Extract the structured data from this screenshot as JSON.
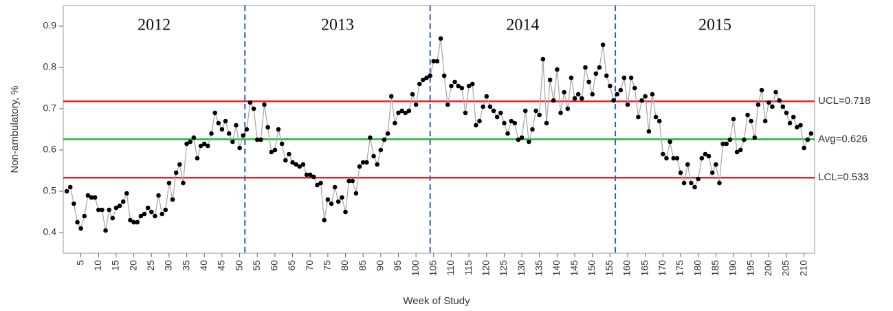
{
  "chart_data": {
    "type": "control",
    "x_label": "Week of Study",
    "y_label": "Non-ambulatory, %",
    "xlim": [
      0,
      213
    ],
    "ylim": [
      0.35,
      0.95
    ],
    "xticks": [
      5,
      10,
      15,
      20,
      25,
      30,
      35,
      40,
      45,
      50,
      55,
      60,
      65,
      70,
      75,
      80,
      85,
      90,
      95,
      100,
      105,
      110,
      115,
      120,
      125,
      130,
      135,
      140,
      145,
      150,
      155,
      160,
      165,
      170,
      175,
      180,
      185,
      190,
      195,
      200,
      205,
      210
    ],
    "yticks": [
      0.4,
      0.5,
      0.6,
      0.7,
      0.8,
      0.9
    ],
    "year_labels": [
      "2012",
      "2013",
      "2014",
      "2015"
    ],
    "year_dividers": [
      51.5,
      104,
      156.5
    ],
    "control_lines": [
      {
        "label": "UCL=0.718",
        "value": 0.718,
        "color": "#e8222c"
      },
      {
        "label": "Avg=0.626",
        "value": 0.626,
        "color": "#22b33a"
      },
      {
        "label": "LCL=0.533",
        "value": 0.533,
        "color": "#e8222c"
      }
    ],
    "x": [
      1,
      2,
      3,
      4,
      5,
      6,
      7,
      8,
      9,
      10,
      11,
      12,
      13,
      14,
      15,
      16,
      17,
      18,
      19,
      20,
      21,
      22,
      23,
      24,
      25,
      26,
      27,
      28,
      29,
      30,
      31,
      32,
      33,
      34,
      35,
      36,
      37,
      38,
      39,
      40,
      41,
      42,
      43,
      44,
      45,
      46,
      47,
      48,
      49,
      50,
      51,
      52,
      53,
      54,
      55,
      56,
      57,
      58,
      59,
      60,
      61,
      62,
      63,
      64,
      65,
      66,
      67,
      68,
      69,
      70,
      71,
      72,
      73,
      74,
      75,
      76,
      77,
      78,
      79,
      80,
      81,
      82,
      83,
      84,
      85,
      86,
      87,
      88,
      89,
      90,
      91,
      92,
      93,
      94,
      95,
      96,
      97,
      98,
      99,
      100,
      101,
      102,
      103,
      104,
      105,
      106,
      107,
      108,
      109,
      110,
      111,
      112,
      113,
      114,
      115,
      116,
      117,
      118,
      119,
      120,
      121,
      122,
      123,
      124,
      125,
      126,
      127,
      128,
      129,
      130,
      131,
      132,
      133,
      134,
      135,
      136,
      137,
      138,
      139,
      140,
      141,
      142,
      143,
      144,
      145,
      146,
      147,
      148,
      149,
      150,
      151,
      152,
      153,
      154,
      155,
      156,
      157,
      158,
      159,
      160,
      161,
      162,
      163,
      164,
      165,
      166,
      167,
      168,
      169,
      170,
      171,
      172,
      173,
      174,
      175,
      176,
      177,
      178,
      179,
      180,
      181,
      182,
      183,
      184,
      185,
      186,
      187,
      188,
      189,
      190,
      191,
      192,
      193,
      194,
      195,
      196,
      197,
      198,
      199,
      200,
      201,
      202,
      203,
      204,
      205,
      206,
      207,
      208,
      209,
      210,
      211,
      212
    ],
    "series": [
      {
        "color": "#000000",
        "line_color": "#aaaaaa",
        "values": [
          0.5,
          0.51,
          0.47,
          0.425,
          0.41,
          0.44,
          0.49,
          0.485,
          0.485,
          0.455,
          0.455,
          0.405,
          0.455,
          0.435,
          0.46,
          0.465,
          0.475,
          0.495,
          0.43,
          0.425,
          0.425,
          0.44,
          0.445,
          0.46,
          0.45,
          0.44,
          0.49,
          0.445,
          0.455,
          0.52,
          0.48,
          0.545,
          0.565,
          0.52,
          0.615,
          0.62,
          0.63,
          0.58,
          0.61,
          0.615,
          0.61,
          0.64,
          0.69,
          0.665,
          0.65,
          0.67,
          0.64,
          0.62,
          0.66,
          0.605,
          0.635,
          0.65,
          0.715,
          0.7,
          0.625,
          0.625,
          0.71,
          0.655,
          0.595,
          0.6,
          0.65,
          0.615,
          0.575,
          0.59,
          0.57,
          0.565,
          0.56,
          0.565,
          0.54,
          0.54,
          0.535,
          0.515,
          0.52,
          0.43,
          0.48,
          0.47,
          0.51,
          0.475,
          0.485,
          0.45,
          0.525,
          0.525,
          0.495,
          0.56,
          0.57,
          0.57,
          0.63,
          0.585,
          0.565,
          0.6,
          0.625,
          0.64,
          0.73,
          0.665,
          0.69,
          0.695,
          0.69,
          0.695,
          0.735,
          0.71,
          0.76,
          0.77,
          0.775,
          0.78,
          0.815,
          0.815,
          0.87,
          0.78,
          0.71,
          0.755,
          0.765,
          0.755,
          0.75,
          0.69,
          0.755,
          0.76,
          0.66,
          0.67,
          0.705,
          0.73,
          0.705,
          0.695,
          0.68,
          0.69,
          0.665,
          0.64,
          0.67,
          0.665,
          0.625,
          0.63,
          0.695,
          0.62,
          0.65,
          0.695,
          0.685,
          0.82,
          0.665,
          0.77,
          0.72,
          0.795,
          0.69,
          0.74,
          0.7,
          0.775,
          0.725,
          0.735,
          0.725,
          0.8,
          0.765,
          0.735,
          0.785,
          0.8,
          0.855,
          0.78,
          0.755,
          0.72,
          0.735,
          0.745,
          0.775,
          0.71,
          0.775,
          0.75,
          0.68,
          0.72,
          0.73,
          0.645,
          0.735,
          0.68,
          0.67,
          0.59,
          0.58,
          0.62,
          0.58,
          0.58,
          0.545,
          0.52,
          0.565,
          0.52,
          0.51,
          0.53,
          0.58,
          0.59,
          0.585,
          0.545,
          0.565,
          0.52,
          0.615,
          0.615,
          0.625,
          0.675,
          0.595,
          0.6,
          0.625,
          0.685,
          0.67,
          0.63,
          0.71,
          0.745,
          0.67,
          0.715,
          0.705,
          0.74,
          0.72,
          0.705,
          0.69,
          0.665,
          0.68,
          0.655,
          0.66,
          0.605,
          0.625,
          0.64
        ]
      }
    ]
  }
}
